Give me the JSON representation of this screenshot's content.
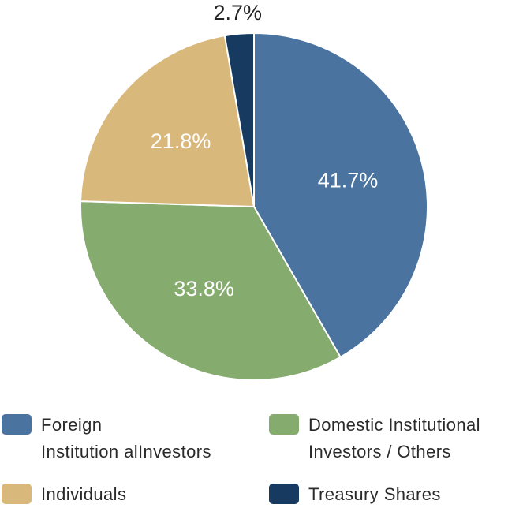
{
  "chart_data": {
    "type": "pie",
    "title": "",
    "categories": [
      "Foreign\nInstitution alInvestors",
      "Domestic Institutional\nInvestors / Others",
      "Individuals",
      "Treasury Shares"
    ],
    "values": [
      41.7,
      33.8,
      21.8,
      2.7
    ],
    "labels": [
      "41.7%",
      "33.8%",
      "21.8%",
      "2.7%"
    ],
    "colors": [
      "#4a73a0",
      "#86ab6e",
      "#d9b87c",
      "#163a60"
    ],
    "label_colors": [
      "#ffffff",
      "#ffffff",
      "#ffffff",
      "#222222"
    ],
    "start_angle_deg": 0,
    "direction": "clockwise",
    "legend_placement": "bottom"
  }
}
